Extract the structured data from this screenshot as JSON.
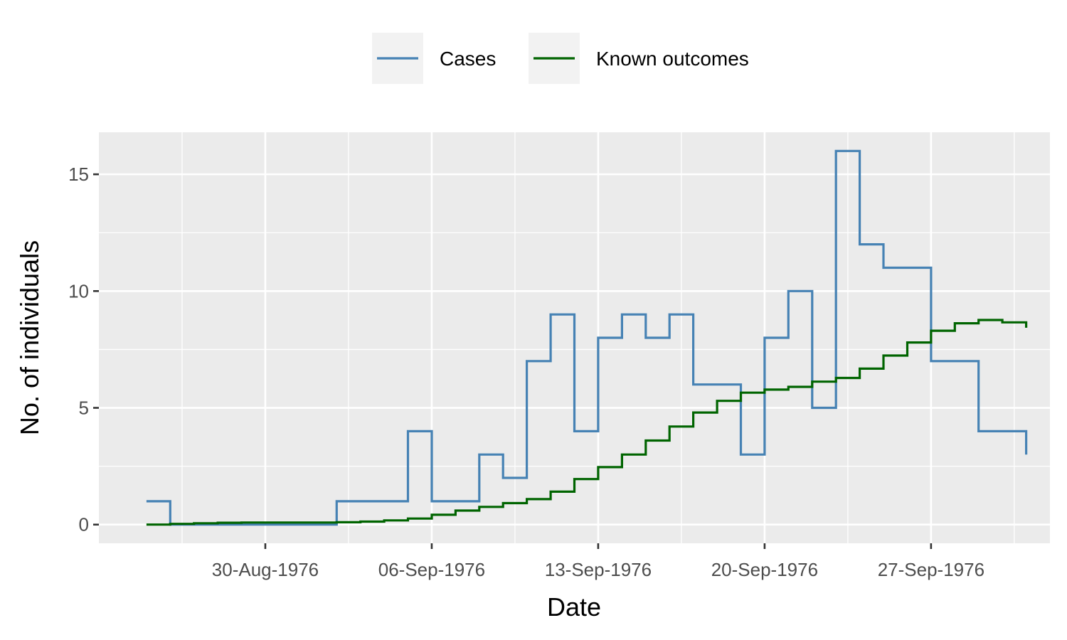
{
  "chart_data": {
    "type": "line",
    "step": true,
    "xlabel": "Date",
    "ylabel": "No. of individuals",
    "x_range": [
      "1976-08-23",
      "1976-10-02"
    ],
    "ylim": [
      -0.8,
      16.8
    ],
    "x_ticks": [
      {
        "date": "1976-08-30",
        "label": "30-Aug-1976"
      },
      {
        "date": "1976-09-06",
        "label": "06-Sep-1976"
      },
      {
        "date": "1976-09-13",
        "label": "13-Sep-1976"
      },
      {
        "date": "1976-09-20",
        "label": "20-Sep-1976"
      },
      {
        "date": "1976-09-27",
        "label": "27-Sep-1976"
      }
    ],
    "y_ticks": [
      0,
      5,
      10,
      15
    ],
    "grid": true,
    "legend_position": "top",
    "x": [
      "1976-08-25",
      "1976-08-26",
      "1976-08-27",
      "1976-08-28",
      "1976-08-29",
      "1976-08-30",
      "1976-08-31",
      "1976-09-01",
      "1976-09-02",
      "1976-09-03",
      "1976-09-04",
      "1976-09-05",
      "1976-09-06",
      "1976-09-07",
      "1976-09-08",
      "1976-09-09",
      "1976-09-10",
      "1976-09-11",
      "1976-09-12",
      "1976-09-13",
      "1976-09-14",
      "1976-09-15",
      "1976-09-16",
      "1976-09-17",
      "1976-09-18",
      "1976-09-19",
      "1976-09-20",
      "1976-09-21",
      "1976-09-22",
      "1976-09-23",
      "1976-09-24",
      "1976-09-25",
      "1976-09-26",
      "1976-09-27",
      "1976-09-28",
      "1976-09-29",
      "1976-09-30",
      "1976-10-01"
    ],
    "series": [
      {
        "name": "Cases",
        "color": "#4682b4",
        "values": [
          1,
          0,
          0,
          0,
          0,
          0,
          0,
          0,
          1,
          1,
          1,
          4,
          1,
          1,
          3,
          2,
          7,
          9,
          4,
          8,
          9,
          8,
          9,
          6,
          6,
          3,
          8,
          10,
          5,
          16,
          12,
          11,
          11,
          7,
          7,
          4,
          4,
          3
        ]
      },
      {
        "name": "Known outcomes",
        "color": "#006400",
        "values": [
          0,
          0.03,
          0.06,
          0.08,
          0.09,
          0.09,
          0.09,
          0.09,
          0.1,
          0.13,
          0.18,
          0.26,
          0.42,
          0.6,
          0.76,
          0.92,
          1.09,
          1.41,
          1.95,
          2.46,
          3.0,
          3.6,
          4.2,
          4.8,
          5.3,
          5.65,
          5.78,
          5.9,
          6.12,
          6.28,
          6.68,
          7.24,
          7.8,
          8.3,
          8.62,
          8.76,
          8.66,
          8.43
        ]
      }
    ]
  }
}
